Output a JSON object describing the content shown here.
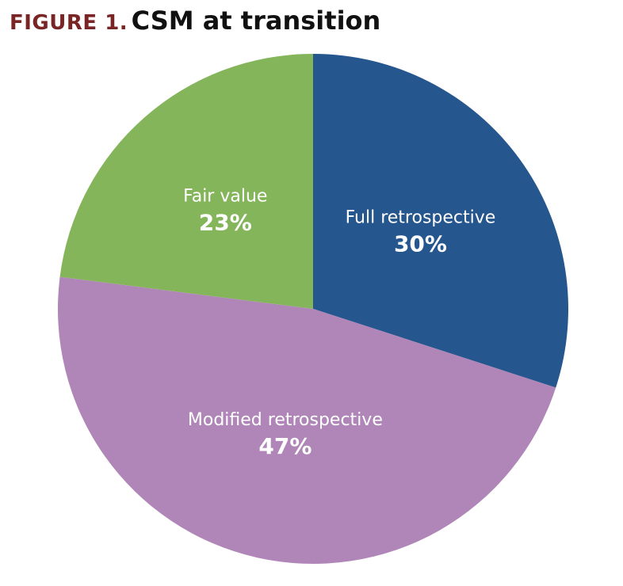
{
  "header": {
    "figure_label": "FIGURE 1.",
    "title": "CSM at transition"
  },
  "chart_data": {
    "type": "pie",
    "title": "CSM at transition",
    "start_angle_deg": 0,
    "direction": "clockwise",
    "slices": [
      {
        "label": "Full retrospective",
        "value": 30,
        "display": "30%",
        "color": "#26568e"
      },
      {
        "label": "Modified retrospective",
        "value": 47,
        "display": "47%",
        "color": "#b086b8"
      },
      {
        "label": "Fair value",
        "value": 23,
        "display": "23%",
        "color": "#84b55a"
      }
    ]
  }
}
